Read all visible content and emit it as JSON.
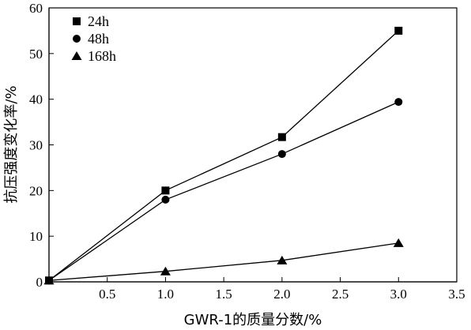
{
  "chart_data": {
    "type": "line",
    "xlabel": "GWR-1的质量分数/%",
    "ylabel": "抗压强度变化率/%",
    "xlim": [
      0,
      3.5
    ],
    "ylim": [
      0,
      60
    ],
    "xticks": [
      "0.5",
      "1.0",
      "1.5",
      "2.0",
      "2.5",
      "3.0",
      "3.5"
    ],
    "yticks": [
      "0",
      "10",
      "20",
      "30",
      "40",
      "50",
      "60"
    ],
    "grid": false,
    "legend_position": "top-left",
    "x": [
      0,
      1.0,
      2.0,
      3.0
    ],
    "series": [
      {
        "name": "24h",
        "marker": "square",
        "values": [
          0.3,
          20.0,
          31.7,
          55.0
        ]
      },
      {
        "name": "48h",
        "marker": "circle",
        "values": [
          0.3,
          18.0,
          28.0,
          39.4
        ]
      },
      {
        "name": "168h",
        "marker": "triangle",
        "values": [
          0.3,
          2.3,
          4.7,
          8.5
        ]
      }
    ]
  }
}
